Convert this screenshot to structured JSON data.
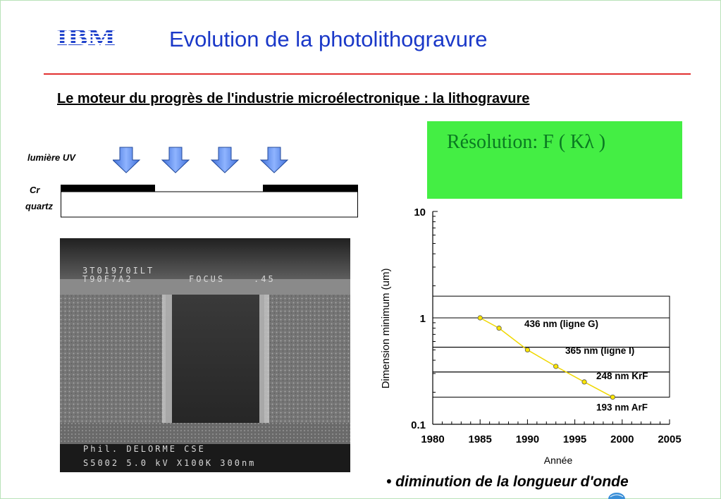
{
  "slide": {
    "logo_text": "IBM",
    "title": "Evolution de la photolithogravure",
    "subtitle": "Le moteur du progrès de l'industrie microélectronique : la lithogravure",
    "resolution_formula": "Résolution:  F ( Kλ )",
    "diagram_labels": {
      "uv": "lumière UV",
      "cr": "Cr",
      "quartz": "quartz"
    },
    "sem_image": {
      "line1": "3T01970ILT",
      "line2": "T90F7A2",
      "focus": "FOCUS",
      "focus_value": ".45",
      "credit": "Phil. DELORME CSE",
      "specs": "S5002   5.0 kV   X100K   300nm"
    },
    "bullet": "• diminution de la longueur d'onde",
    "colors": {
      "title": "#1a38c8",
      "rule": "#e23030",
      "formula_box": "#44ee44",
      "formula_text": "#0a7a22",
      "arrow": "#5b8ee8",
      "trend_line": "#f0d800"
    }
  },
  "chart_data": {
    "type": "scatter",
    "xlabel": "Année",
    "ylabel": "Dimension minimum (um)",
    "xlim": [
      1980,
      2005
    ],
    "ylim": [
      0.1,
      10
    ],
    "yscale": "log",
    "x_ticks": [
      "1980",
      "1985",
      "1990",
      "1995",
      "2000",
      "2005"
    ],
    "y_ticks": [
      "0.1",
      "1",
      "10"
    ],
    "series": [
      {
        "x": [
          1985,
          1987,
          1990,
          1993,
          1996,
          1999
        ],
        "values": [
          1.0,
          0.8,
          0.5,
          0.35,
          0.25,
          0.18
        ]
      }
    ],
    "bands": [
      {
        "label": "436 nm  (ligne G)",
        "top": 1.6,
        "bottom": 1.0
      },
      {
        "label": "365 nm  (ligne I)",
        "top": 1.0,
        "bottom": 0.53
      },
      {
        "label": "248 nm  KrF",
        "top": 0.53,
        "bottom": 0.31
      },
      {
        "label": "193 nm  ArF",
        "top": 0.31,
        "bottom": 0.18
      }
    ]
  }
}
